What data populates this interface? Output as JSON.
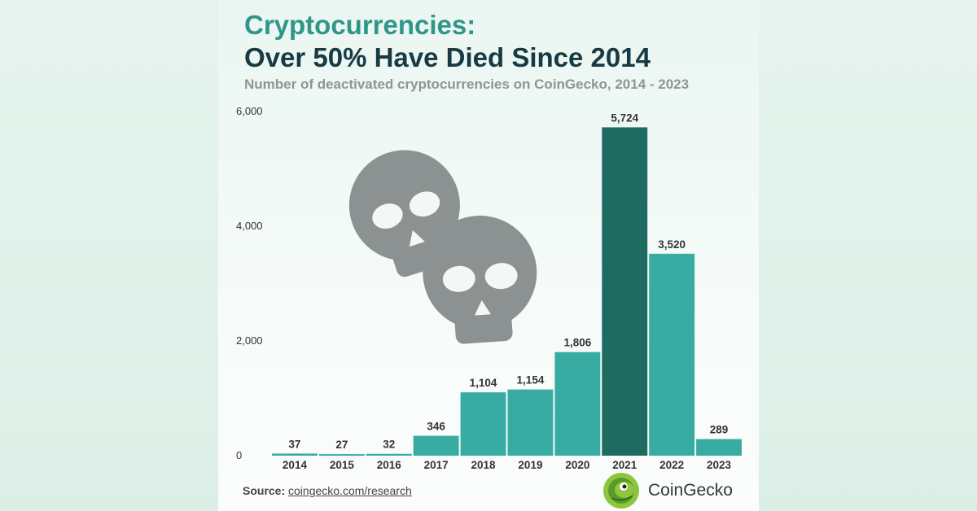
{
  "header": {
    "title_line1": "Cryptocurrencies:",
    "title_line2": "Over 50% Have Died Since 2014",
    "subtitle": "Number of deactivated cryptocurrencies on CoinGecko, 2014 - 2023"
  },
  "colors": {
    "bar": "#38aca2",
    "highlight": "#1f6b62",
    "skull": "#8c9291",
    "title_accent": "#2f9688",
    "title_dark": "#173a44"
  },
  "chart_data": {
    "type": "bar",
    "title": "Cryptocurrencies: Over 50% Have Died Since 2014",
    "subtitle": "Number of deactivated cryptocurrencies on CoinGecko, 2014 - 2023",
    "categories": [
      "2014",
      "2015",
      "2016",
      "2017",
      "2018",
      "2019",
      "2020",
      "2021",
      "2022",
      "2023"
    ],
    "values": [
      37,
      27,
      32,
      346,
      1104,
      1154,
      1806,
      5724,
      3520,
      289
    ],
    "data_labels": [
      "37",
      "27",
      "32",
      "346",
      "1,104",
      "1,154",
      "1,806",
      "5,724",
      "3,520",
      "289"
    ],
    "yticks": [
      0,
      2000,
      4000,
      6000
    ],
    "ytick_labels": [
      "0",
      "2,000",
      "4,000",
      "6,000"
    ],
    "ylim": [
      0,
      6000
    ],
    "highlighted_category": "2021",
    "grid": false,
    "legend": "none"
  },
  "footer": {
    "source_label": "Source:",
    "source_link": "coingecko.com/research",
    "brand": "CoinGecko"
  }
}
